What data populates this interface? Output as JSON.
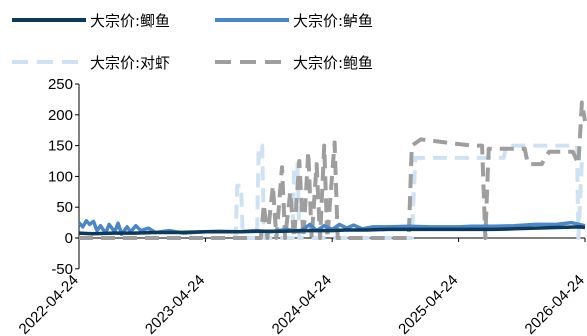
{
  "chart_data": {
    "type": "line",
    "title": "",
    "xlabel": "",
    "ylabel": "",
    "ylim": [
      -50,
      250
    ],
    "yticks": [
      -50,
      0,
      50,
      100,
      150,
      200,
      250
    ],
    "xlim": [
      "2022-04-24",
      "2026-04-24"
    ],
    "xticks": [
      "2022-04-24",
      "2023-04-24",
      "2024-04-24",
      "2025-04-24",
      "2026-04-24"
    ],
    "grid": false,
    "legend": "top",
    "series": [
      {
        "name": "大宗价:鲫鱼",
        "color": "#0b3a5c",
        "dash": "solid",
        "points": [
          [
            "2022-04-24",
            8
          ],
          [
            "2022-06-01",
            7
          ],
          [
            "2022-08-01",
            8
          ],
          [
            "2022-10-01",
            8
          ],
          [
            "2022-12-01",
            9
          ],
          [
            "2023-02-01",
            9
          ],
          [
            "2023-04-24",
            10
          ],
          [
            "2023-06-01",
            10
          ],
          [
            "2023-08-01",
            10
          ],
          [
            "2023-10-01",
            11
          ],
          [
            "2023-12-01",
            11
          ],
          [
            "2024-02-01",
            12
          ],
          [
            "2024-04-24",
            12
          ],
          [
            "2024-06-01",
            13
          ],
          [
            "2024-08-01",
            13
          ],
          [
            "2024-10-01",
            14
          ],
          [
            "2024-12-01",
            14
          ],
          [
            "2025-02-01",
            14
          ],
          [
            "2025-04-24",
            14
          ],
          [
            "2025-06-01",
            14
          ],
          [
            "2025-08-01",
            14
          ],
          [
            "2025-10-01",
            15
          ],
          [
            "2025-12-01",
            16
          ],
          [
            "2026-02-01",
            17
          ],
          [
            "2026-04-10",
            18
          ],
          [
            "2026-04-24",
            17
          ]
        ]
      },
      {
        "name": "大宗价:鲈鱼",
        "color": "#4a86c8",
        "dash": "solid",
        "points": [
          [
            "2022-04-24",
            25
          ],
          [
            "2022-05-05",
            18
          ],
          [
            "2022-05-15",
            28
          ],
          [
            "2022-05-25",
            22
          ],
          [
            "2022-06-05",
            27
          ],
          [
            "2022-06-15",
            12
          ],
          [
            "2022-06-25",
            20
          ],
          [
            "2022-07-10",
            8
          ],
          [
            "2022-07-20",
            22
          ],
          [
            "2022-08-05",
            10
          ],
          [
            "2022-08-15",
            24
          ],
          [
            "2022-08-25",
            6
          ],
          [
            "2022-09-10",
            18
          ],
          [
            "2022-09-20",
            10
          ],
          [
            "2022-10-05",
            20
          ],
          [
            "2022-10-20",
            12
          ],
          [
            "2022-11-10",
            16
          ],
          [
            "2022-12-01",
            9
          ],
          [
            "2023-01-10",
            12
          ],
          [
            "2023-02-20",
            8
          ],
          [
            "2023-04-24",
            10
          ],
          [
            "2023-06-01",
            11
          ],
          [
            "2023-08-01",
            10
          ],
          [
            "2023-09-15",
            12
          ],
          [
            "2023-11-01",
            10
          ],
          [
            "2023-12-15",
            14
          ],
          [
            "2024-01-20",
            10
          ],
          [
            "2024-02-20",
            22
          ],
          [
            "2024-03-10",
            12
          ],
          [
            "2024-04-01",
            20
          ],
          [
            "2024-04-24",
            14
          ],
          [
            "2024-05-15",
            22
          ],
          [
            "2024-06-05",
            16
          ],
          [
            "2024-06-25",
            21
          ],
          [
            "2024-07-20",
            15
          ],
          [
            "2024-08-20",
            18
          ],
          [
            "2024-10-01",
            18
          ],
          [
            "2024-12-01",
            19
          ],
          [
            "2025-02-01",
            18
          ],
          [
            "2025-04-24",
            18
          ],
          [
            "2025-06-01",
            19
          ],
          [
            "2025-08-01",
            19
          ],
          [
            "2025-10-01",
            20
          ],
          [
            "2025-12-01",
            22
          ],
          [
            "2026-02-01",
            22
          ],
          [
            "2026-03-15",
            25
          ],
          [
            "2026-04-24",
            20
          ]
        ]
      },
      {
        "name": "大宗价:对虾",
        "color": "#cfe2f3",
        "dash": "dash",
        "points": [
          [
            "2022-04-24",
            0
          ],
          [
            "2023-06-01",
            0
          ],
          [
            "2023-07-20",
            0
          ],
          [
            "2023-07-25",
            85
          ],
          [
            "2023-08-05",
            85
          ],
          [
            "2023-08-10",
            0
          ],
          [
            "2023-09-20",
            0
          ],
          [
            "2023-09-25",
            150
          ],
          [
            "2023-10-05",
            150
          ],
          [
            "2023-10-10",
            0
          ],
          [
            "2024-01-01",
            0
          ],
          [
            "2024-01-05",
            120
          ],
          [
            "2024-01-15",
            120
          ],
          [
            "2024-01-20",
            0
          ],
          [
            "2024-04-01",
            0
          ],
          [
            "2024-04-10",
            0
          ],
          [
            "2024-12-10",
            0
          ],
          [
            "2024-12-20",
            130
          ],
          [
            "2025-09-01",
            130
          ],
          [
            "2025-09-10",
            150
          ],
          [
            "2026-04-01",
            150
          ],
          [
            "2026-04-05",
            0
          ],
          [
            "2026-04-15",
            125
          ],
          [
            "2026-04-24",
            125
          ]
        ]
      },
      {
        "name": "大宗价:鲍鱼",
        "color": "#9e9e9e",
        "dash": "dash",
        "points": [
          [
            "2022-04-24",
            0
          ],
          [
            "2023-10-01",
            0
          ],
          [
            "2023-10-10",
            55
          ],
          [
            "2023-10-20",
            0
          ],
          [
            "2023-11-05",
            85
          ],
          [
            "2023-11-15",
            0
          ],
          [
            "2023-12-01",
            115
          ],
          [
            "2023-12-10",
            0
          ],
          [
            "2023-12-25",
            75
          ],
          [
            "2024-01-05",
            0
          ],
          [
            "2024-01-20",
            125
          ],
          [
            "2024-02-01",
            0
          ],
          [
            "2024-02-15",
            140
          ],
          [
            "2024-02-25",
            0
          ],
          [
            "2024-03-10",
            120
          ],
          [
            "2024-03-20",
            0
          ],
          [
            "2024-04-01",
            150
          ],
          [
            "2024-04-10",
            0
          ],
          [
            "2024-05-01",
            155
          ],
          [
            "2024-05-10",
            0
          ],
          [
            "2024-12-01",
            0
          ],
          [
            "2024-12-10",
            150
          ],
          [
            "2025-01-05",
            160
          ],
          [
            "2025-06-01",
            150
          ],
          [
            "2025-07-01",
            150
          ],
          [
            "2025-07-10",
            0
          ],
          [
            "2025-07-20",
            145
          ],
          [
            "2025-11-01",
            145
          ],
          [
            "2025-11-10",
            120
          ],
          [
            "2025-12-20",
            120
          ],
          [
            "2026-01-10",
            140
          ],
          [
            "2026-03-20",
            140
          ],
          [
            "2026-04-05",
            120
          ],
          [
            "2026-04-15",
            220
          ],
          [
            "2026-04-24",
            190
          ]
        ]
      }
    ]
  }
}
